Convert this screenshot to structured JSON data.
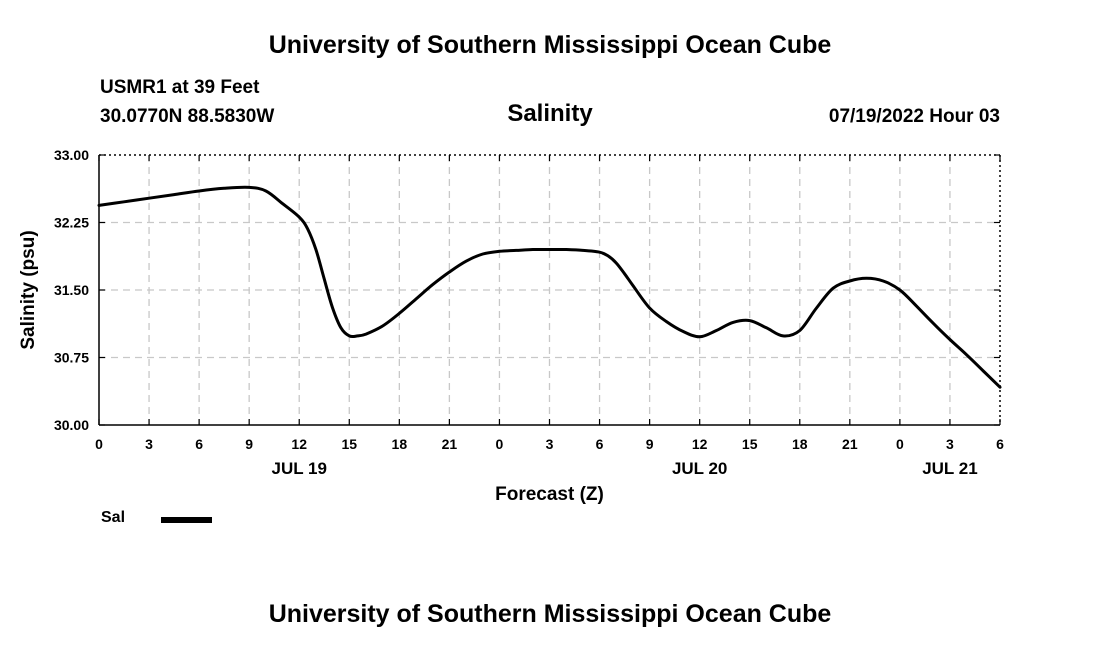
{
  "header": {
    "top_title": "University of Southern Mississippi Ocean Cube",
    "station": "USMR1 at 39 Feet",
    "coords": "30.0770N  88.5830W",
    "chart_title": "Salinity",
    "date": "07/19/2022 Hour 03"
  },
  "footer": {
    "bottom_title": "University of Southern Mississippi Ocean Cube"
  },
  "legend": {
    "label": "Sal"
  },
  "colors": {
    "line": "#000000",
    "grid": "#c8c8c8"
  },
  "chart_data": {
    "type": "line",
    "title": "Salinity",
    "xlabel": "Forecast (Z)",
    "ylabel": "Salinity (psu)",
    "x_unit": "forecast hour from 07/19/2022 00Z",
    "xlim": [
      0,
      54
    ],
    "ylim": [
      30.0,
      33.0
    ],
    "grid": true,
    "legend_position": "bottom-left",
    "x_ticks": [
      0,
      3,
      6,
      9,
      12,
      15,
      18,
      21,
      24,
      27,
      30,
      33,
      36,
      39,
      42,
      45,
      48,
      51,
      54
    ],
    "x_tick_labels": [
      "0",
      "3",
      "6",
      "9",
      "12",
      "15",
      "18",
      "21",
      "0",
      "3",
      "6",
      "9",
      "12",
      "15",
      "18",
      "21",
      "0",
      "3",
      "6"
    ],
    "date_labels": [
      {
        "x": 12,
        "label": "JUL 19"
      },
      {
        "x": 36,
        "label": "JUL 20"
      },
      {
        "x": 51,
        "label": "JUL 21"
      }
    ],
    "y_ticks": [
      30.0,
      30.75,
      31.5,
      32.25,
      33.0
    ],
    "y_tick_labels": [
      "30.00",
      "30.75",
      "31.50",
      "32.25",
      "33.00"
    ],
    "series": [
      {
        "name": "Sal",
        "x": [
          0,
          1.5,
          3,
          4.5,
          6,
          7.5,
          9,
          10,
          11,
          12,
          12.5,
          13,
          13.5,
          14,
          14.5,
          15,
          15.5,
          16,
          17,
          18,
          19,
          20,
          21,
          22,
          23,
          24,
          25,
          26,
          27,
          28,
          29,
          30,
          30.5,
          31,
          31.5,
          32,
          33,
          34,
          35,
          36,
          37,
          38,
          39,
          40,
          41,
          42,
          43,
          44,
          45,
          46,
          47,
          48,
          49,
          50,
          51,
          52,
          53,
          54
        ],
        "y": [
          32.44,
          32.48,
          32.52,
          32.56,
          32.6,
          32.63,
          32.64,
          32.6,
          32.46,
          32.31,
          32.18,
          31.95,
          31.62,
          31.3,
          31.08,
          30.99,
          30.99,
          31.01,
          31.1,
          31.24,
          31.4,
          31.56,
          31.7,
          31.82,
          31.9,
          31.93,
          31.94,
          31.95,
          31.95,
          31.95,
          31.94,
          31.92,
          31.88,
          31.8,
          31.68,
          31.55,
          31.3,
          31.15,
          31.04,
          30.98,
          31.05,
          31.14,
          31.16,
          31.08,
          30.99,
          31.05,
          31.3,
          31.52,
          31.6,
          31.63,
          31.6,
          31.5,
          31.32,
          31.13,
          30.95,
          30.78,
          30.6,
          30.42
        ]
      }
    ]
  }
}
